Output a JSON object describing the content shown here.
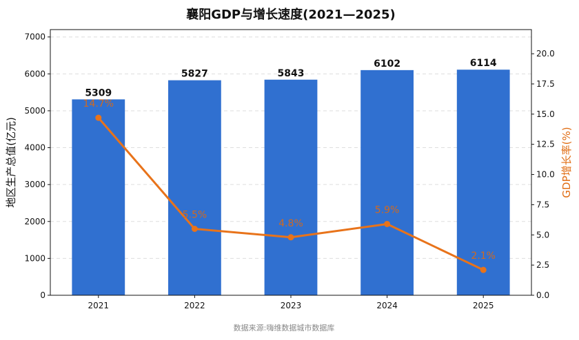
{
  "chart_data": {
    "type": "bar",
    "title": "襄阳GDP与增长速度(2021—2025)",
    "categories": [
      "2021",
      "2022",
      "2023",
      "2024",
      "2025"
    ],
    "series": [
      {
        "type": "bar",
        "values": [
          5309,
          5827,
          5843,
          6102,
          6114
        ],
        "color": "#3070d0",
        "axis": "left"
      },
      {
        "type": "line",
        "values": [
          14.7,
          5.5,
          4.8,
          5.9,
          2.1
        ],
        "color": "#e8731a",
        "axis": "right",
        "labels": [
          "14.7%",
          "5.5%",
          "4.8%",
          "5.9%",
          "2.1%"
        ]
      }
    ],
    "ylabel": "地区生产总值(亿元)",
    "ylabel_right": "GDP增长率(%)",
    "ylim": [
      0,
      7200
    ],
    "ylim_right": [
      0,
      22
    ],
    "yticks": [
      "0",
      "1000",
      "2000",
      "3000",
      "4000",
      "5000",
      "6000",
      "7000"
    ],
    "yticks_right": [
      "0.0",
      "2.5",
      "5.0",
      "7.5",
      "10.0",
      "12.5",
      "15.0",
      "17.5",
      "20.0"
    ],
    "grid": true,
    "source": "数据来源:嗨维数据城市数据库"
  }
}
